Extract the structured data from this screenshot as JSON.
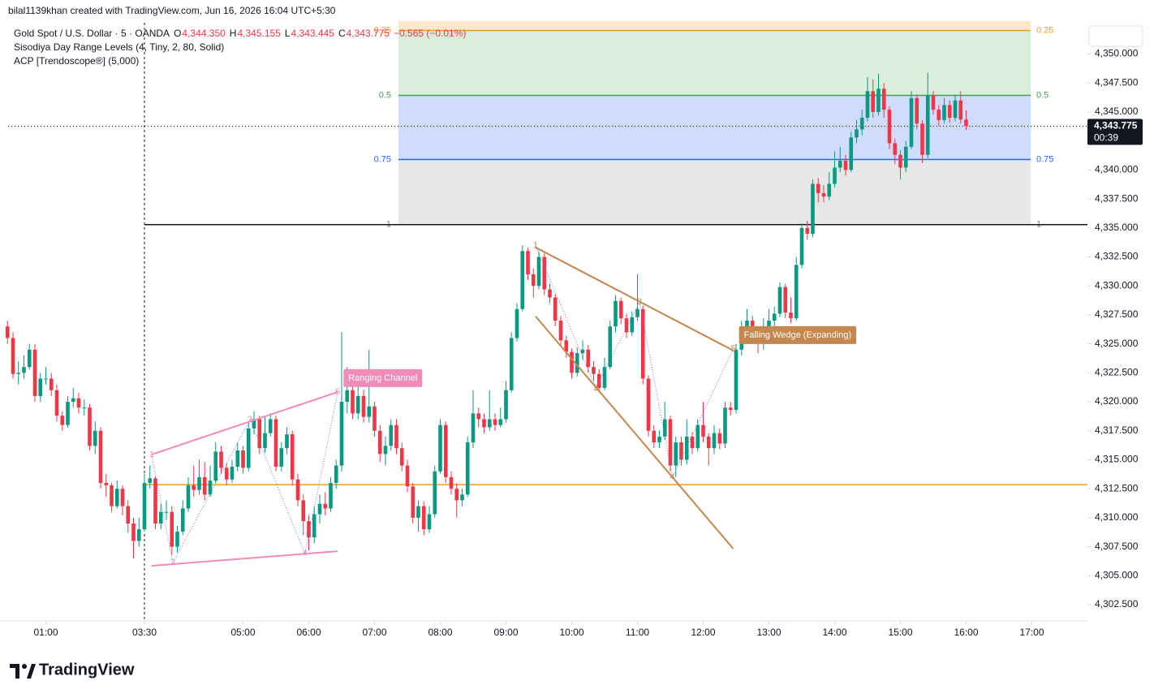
{
  "header": "bilal1139khan created with TradingView.com, Jun 16, 2026 16:04 UTC+5:30",
  "logo_text": "TradingView",
  "chart_data": {
    "type": "candlestick",
    "legend": {
      "symbol": "Gold Spot / U.S. Dollar · 5 · OANDA",
      "items": [
        {
          "prefix": "O",
          "text": "4,344.350"
        },
        {
          "prefix": "H",
          "text": "4,345.155"
        },
        {
          "prefix": "L",
          "text": "4,343.445"
        },
        {
          "prefix": "C",
          "text": "4,343.775"
        }
      ],
      "change": "−0.565 (−0.01%)",
      "indicators": [
        "Sisodiya Day Range Levels (4, Tiny, 2, 80, Solid)",
        "ACP [Trendoscope®] (5,000)"
      ]
    },
    "currency": "USD",
    "last_price_label": "4,343.775",
    "countdown": "00:39",
    "up_color": "#089981",
    "down_color": "#f23645",
    "open": [
      4326.5,
      4325.5,
      4322.4,
      4322.5,
      4323,
      4324.5,
      4320.5,
      4322,
      4322,
      4321,
      4318.8,
      4318,
      4320,
      4320.3,
      4319.5,
      4319.5,
      4316.2,
      4317.5,
      4313,
      4312.8,
      4311,
      4312.5,
      4311,
      4309.5,
      4308,
      4309,
      4313,
      4313.4,
      4309.5,
      4310.5,
      4310.5,
      4307.5,
      4308.8,
      4310.8,
      4312.8,
      4312.4,
      4313.5,
      4312,
      4313.2,
      4315.7,
      4314.3,
      4313.3,
      4314.4,
      4315.8,
      4314.3,
      4317.7,
      4318.5,
      4316,
      4317.3,
      4318.5,
      4314.4,
      4316,
      4317.2,
      4313.3,
      4311.5,
      4309.7,
      4308.3,
      4310.3,
      4311.2,
      4310.8,
      4313,
      4314.5,
      4320,
      4321,
      4319,
      4320.5,
      4318.7,
      4319.6,
      4317.5,
      4315.5,
      4316.2,
      4318,
      4316,
      4314.5,
      4312.7,
      4310,
      4311,
      4309,
      4310.3,
      4314,
      4318,
      4313.5,
      4312.5,
      4311.5,
      4312,
      4316.5,
      4319,
      4318.5,
      4317.8,
      4318.5,
      4318,
      4318.5,
      4321,
      4325.5,
      4328,
      4333,
      4331,
      4330,
      4332.5,
      4329.7,
      4329,
      4327,
      4325.3,
      4324.3,
      4322.5,
      4324.2,
      4324.5,
      4323,
      4322.4,
      4321.2,
      4323,
      4326.5,
      4328.7,
      4327.2,
      4326,
      4327.3,
      4328,
      4322,
      4317.5,
      4316.5,
      4317,
      4318.5,
      4314.5,
      4316.5,
      4315,
      4317,
      4316,
      4318,
      4317,
      4316,
      4317.3,
      4316.4,
      4319.5,
      4319.3,
      4324.5,
      4326.5,
      4327,
      4325.7,
      4325,
      4326.5,
      4327,
      4327.6,
      4329.9,
      4327.7,
      4327.2,
      4331.8,
      4335,
      4334.5,
      4338.8,
      4338,
      4337.7,
      4338.8,
      4340.2,
      4340.8,
      4340,
      4342.8,
      4343.5,
      4344.5,
      4346.8,
      4345,
      4347,
      4345.2,
      4342.3,
      4341.3,
      4340.2,
      4342,
      4346.2,
      4344,
      4341.3,
      4346.4,
      4345.2,
      4344.3,
      4345.6,
      4344.5,
      4346,
      4344.35
    ],
    "high": [
      4327,
      4326,
      4323.5,
      4324,
      4325,
      4325,
      4322.5,
      4323,
      4322.5,
      4321.5,
      4319.2,
      4320.5,
      4321.2,
      4320.8,
      4320.2,
      4319.8,
      4318.3,
      4317.8,
      4313.8,
      4313,
      4313.2,
      4312.8,
      4311.5,
      4310,
      4310,
      4313.8,
      4314.5,
      4313.6,
      4311.2,
      4311.5,
      4311,
      4309.3,
      4311.5,
      4313.5,
      4314.5,
      4315,
      4314.8,
      4314.5,
      4316.5,
      4316.2,
      4314.7,
      4315,
      4316.5,
      4316.2,
      4318.2,
      4319.2,
      4318.8,
      4318.7,
      4319,
      4318.8,
      4316.5,
      4317.8,
      4317.5,
      4313.8,
      4312,
      4310.2,
      4311,
      4312,
      4312.2,
      4313.5,
      4315,
      4326,
      4323,
      4321.5,
      4321.5,
      4321,
      4324.5,
      4320,
      4318,
      4317,
      4318.5,
      4318.5,
      4316.5,
      4315,
      4313,
      4311.5,
      4311.4,
      4311,
      4314.5,
      4318.5,
      4318.3,
      4314,
      4313,
      4312.5,
      4317,
      4321,
      4319.5,
      4319,
      4321,
      4319,
      4319.5,
      4321.8,
      4326,
      4328.5,
      4333.5,
      4333.3,
      4331.5,
      4333,
      4332.8,
      4330.2,
      4329.3,
      4327.4,
      4325.7,
      4324.6,
      4324.7,
      4325.3,
      4324.9,
      4323.5,
      4322.8,
      4323.8,
      4327,
      4329.2,
      4329,
      4327.6,
      4327.8,
      4331,
      4328.3,
      4322.3,
      4318,
      4317.5,
      4320,
      4318.8,
      4317,
      4317,
      4318.5,
      4317.4,
      4318.5,
      4320,
      4317.3,
      4318,
      4317.7,
      4320,
      4320,
      4325,
      4327,
      4328,
      4327.4,
      4326.2,
      4327.2,
      4328,
      4328.2,
      4330.3,
      4330.2,
      4329,
      4332.5,
      4335.4,
      4335.6,
      4339.2,
      4339.3,
      4338.7,
      4339.8,
      4341.6,
      4342,
      4341.3,
      4343.3,
      4344.3,
      4345.2,
      4348,
      4347.8,
      4348.3,
      4347.5,
      4345.5,
      4342.7,
      4341.7,
      4342.5,
      4346.8,
      4346.5,
      4344.3,
      4348.4,
      4346.8,
      4345.6,
      4346.2,
      4346,
      4346.5,
      4346.8,
      4345.155
    ],
    "low": [
      4325,
      4322,
      4321.5,
      4322,
      4322.8,
      4320,
      4320,
      4321.5,
      4320.5,
      4318.3,
      4317.5,
      4317.8,
      4319.5,
      4319,
      4318.8,
      4315.8,
      4315.5,
      4312.5,
      4311.8,
      4310.5,
      4310.8,
      4310.2,
      4308.7,
      4306.5,
      4307.5,
      4308.8,
      4312.5,
      4309,
      4309,
      4309.8,
      4306.8,
      4307,
      4308.5,
      4310.5,
      4311.8,
      4312,
      4311.5,
      4311.8,
      4313,
      4313.8,
      4312.8,
      4313,
      4314,
      4313.8,
      4314,
      4317.2,
      4315.5,
      4315.6,
      4317,
      4314,
      4314,
      4315.5,
      4312.8,
      4311,
      4308.5,
      4307.2,
      4307.8,
      4309.5,
      4310.2,
      4310.5,
      4312.5,
      4314,
      4319,
      4318.5,
      4318.5,
      4318.2,
      4318.2,
      4317,
      4314.8,
      4314.5,
      4315.8,
      4315.5,
      4314,
      4312.2,
      4309.5,
      4308.8,
      4308.5,
      4308.7,
      4310,
      4313.8,
      4313,
      4312,
      4310,
      4311,
      4311.8,
      4316,
      4317.8,
      4317.3,
      4317.5,
      4317.5,
      4317.8,
      4318.2,
      4320.8,
      4325.2,
      4327.8,
      4330.5,
      4329,
      4329.7,
      4329.2,
      4328.5,
      4326.5,
      4324.8,
      4323.8,
      4322,
      4322.2,
      4323.6,
      4322.5,
      4321.8,
      4320.8,
      4321,
      4322.8,
      4326,
      4326.7,
      4325.5,
      4325.7,
      4327,
      4321.5,
      4317,
      4316,
      4316,
      4316.7,
      4314,
      4313.5,
      4314.5,
      4314.6,
      4315.5,
      4315.7,
      4316.5,
      4314.5,
      4315.5,
      4315.9,
      4316,
      4318.8,
      4319,
      4324,
      4325.8,
      4325,
      4324.2,
      4324.5,
      4325.8,
      4326.3,
      4327.3,
      4327.2,
      4326.8,
      4327,
      4331.5,
      4334,
      4334.2,
      4337.2,
      4337.2,
      4337.4,
      4338.5,
      4339.8,
      4339.5,
      4339.8,
      4342.3,
      4343,
      4344.2,
      4344.5,
      4344.7,
      4344.5,
      4341.8,
      4340.5,
      4339.2,
      4339.8,
      4341.8,
      4343.5,
      4340.6,
      4341,
      4344.8,
      4343.8,
      4344,
      4344.1,
      4344.2,
      4344,
      4343.445
    ],
    "close": [
      4325.5,
      4322.4,
      4322.5,
      4323,
      4324.5,
      4320.5,
      4322,
      4322,
      4321,
      4318.8,
      4318,
      4320,
      4320.3,
      4319.5,
      4319.5,
      4316.2,
      4317.5,
      4313,
      4312.8,
      4311,
      4312.5,
      4311,
      4309.5,
      4308,
      4309,
      4313,
      4313.4,
      4309.5,
      4310.5,
      4310.5,
      4307.5,
      4308.8,
      4310.8,
      4312.8,
      4312.4,
      4313.5,
      4312,
      4313.2,
      4315.7,
      4314.3,
      4313.3,
      4314.4,
      4315.8,
      4314.3,
      4317.7,
      4318.5,
      4316,
      4317.3,
      4318.5,
      4314.4,
      4316,
      4317.2,
      4313.3,
      4311.5,
      4309.7,
      4308.3,
      4310.3,
      4311.2,
      4310.8,
      4313,
      4314.5,
      4320,
      4321,
      4319,
      4320.5,
      4318.7,
      4319.6,
      4317.5,
      4315.5,
      4316.2,
      4318,
      4316,
      4314.5,
      4312.7,
      4310,
      4311,
      4309,
      4310.3,
      4314,
      4318,
      4313.5,
      4312.5,
      4311.5,
      4312,
      4316.5,
      4319,
      4318.5,
      4317.8,
      4318.5,
      4318,
      4318.5,
      4321,
      4325.5,
      4328,
      4333,
      4331,
      4330,
      4332.5,
      4329.7,
      4329,
      4327,
      4325.3,
      4324.3,
      4322.5,
      4324.2,
      4324.5,
      4323,
      4322.4,
      4321.2,
      4323,
      4326.5,
      4328.7,
      4327.2,
      4326,
      4327.3,
      4328,
      4322,
      4317.5,
      4316.5,
      4317,
      4318.5,
      4314.5,
      4316.5,
      4315,
      4317,
      4316,
      4318,
      4317,
      4316,
      4317.3,
      4316.4,
      4319.5,
      4319.3,
      4324.5,
      4326.5,
      4327,
      4325.7,
      4325,
      4326.5,
      4327,
      4327.6,
      4329.9,
      4327.7,
      4327.2,
      4331.8,
      4335,
      4334.5,
      4338.8,
      4338,
      4337.7,
      4338.8,
      4340.2,
      4340.8,
      4340,
      4342.8,
      4343.5,
      4344.5,
      4346.8,
      4345,
      4347,
      4345.2,
      4342.3,
      4341.3,
      4340.2,
      4342,
      4346.2,
      4344,
      4341.3,
      4346.4,
      4345.2,
      4344.3,
      4345.6,
      4344.5,
      4346,
      4344.35,
      4343.775
    ],
    "ylim": [
      4301.1,
      4352.7
    ],
    "yticks": [
      {
        "value": 4302.5,
        "label": "4,302.500"
      },
      {
        "value": 4305,
        "label": "4,305.000"
      },
      {
        "value": 4307.5,
        "label": "4,307.500"
      },
      {
        "value": 4310,
        "label": "4,310.000"
      },
      {
        "value": 4312.5,
        "label": "4,312.500"
      },
      {
        "value": 4315,
        "label": "4,315.000"
      },
      {
        "value": 4317.5,
        "label": "4,317.500"
      },
      {
        "value": 4320,
        "label": "4,320.000"
      },
      {
        "value": 4322.5,
        "label": "4,322.500"
      },
      {
        "value": 4325,
        "label": "4,325.000"
      },
      {
        "value": 4327.5,
        "label": "4,327.500"
      },
      {
        "value": 4330,
        "label": "4,330.000"
      },
      {
        "value": 4332.5,
        "label": "4,332.500"
      },
      {
        "value": 4335,
        "label": "4,335.000"
      },
      {
        "value": 4337.5,
        "label": "4,337.500"
      },
      {
        "value": 4340,
        "label": "4,340.000"
      },
      {
        "value": 4342.5,
        "label": "4,342.500"
      },
      {
        "value": 4345,
        "label": "4,345.000"
      },
      {
        "value": 4347.5,
        "label": "4,347.500"
      },
      {
        "value": 4350,
        "label": "4,350.000"
      }
    ],
    "xticks": [
      {
        "value": 7,
        "label": "01:00"
      },
      {
        "value": 25,
        "label": "03:30"
      },
      {
        "value": 43,
        "label": "05:00"
      },
      {
        "value": 55,
        "label": "06:00"
      },
      {
        "value": 67,
        "label": "07:00"
      },
      {
        "value": 79,
        "label": "08:00"
      },
      {
        "value": 91,
        "label": "09:00"
      },
      {
        "value": 103,
        "label": "10:00"
      },
      {
        "value": 115,
        "label": "11:00"
      },
      {
        "value": 127,
        "label": "12:00"
      },
      {
        "value": 139,
        "label": "13:00"
      },
      {
        "value": 151,
        "label": "14:00"
      },
      {
        "value": 163,
        "label": "15:00"
      },
      {
        "value": 175,
        "label": "16:00"
      },
      {
        "value": 187,
        "label": "17:00"
      }
    ],
    "fib_levels": [
      {
        "label": "0.25",
        "value": 4352.03,
        "color": "#f59b22",
        "fill": "#fde8cc"
      },
      {
        "label": "0.5",
        "value": 4346.43,
        "color": "#43a047",
        "fill": "#d9efdb"
      },
      {
        "label": "0.75",
        "value": 4340.9,
        "color": "#2962ff",
        "fill": "#d0dcfd"
      },
      {
        "label": "1",
        "value": 4335.28,
        "color": "#787b86",
        "fill": "#e7e7e8"
      }
    ],
    "day_levels": [
      {
        "value": 4335.28,
        "color": "#131722"
      },
      {
        "value": 4312.85,
        "color": "#f59b22"
      }
    ],
    "patterns": [
      {
        "name": "Ranging Channel",
        "color": "#f08cba",
        "points": [
          {
            "label": "1",
            "x": 26.3,
            "y": 4315.45
          },
          {
            "label": "2",
            "x": 30.2,
            "y": 4306.13
          },
          {
            "label": "3",
            "x": 44.3,
            "y": 4318.47
          },
          {
            "label": "4",
            "x": 54.3,
            "y": 4306.9
          },
          {
            "label": "5",
            "x": 60.3,
            "y": 4320.85
          }
        ],
        "lines": [
          {
            "x": [
              26.3,
              60.3
            ],
            "y": [
              4315.45,
              4320.85
            ]
          },
          {
            "x": [
              26.3,
              60.3
            ],
            "y": [
              4305.85,
              4307.11
            ]
          }
        ]
      },
      {
        "name": "Falling Wedge (Expanding)",
        "color": "#c4874f",
        "points": [
          {
            "label": "1",
            "x": 96.4,
            "y": 4333.46
          },
          {
            "label": "2",
            "x": 107.4,
            "y": 4321.2
          },
          {
            "label": "3",
            "x": 115.4,
            "y": 4328.6
          },
          {
            "label": "4",
            "x": 121.4,
            "y": 4313.5
          },
          {
            "label": "5",
            "x": 132.5,
            "y": 4324.56
          }
        ],
        "lines": [
          {
            "x": [
              96.4,
              132.5
            ],
            "y": [
              4333.32,
              4324.42
            ]
          },
          {
            "x": [
              96.4,
              132.5
            ],
            "y": [
              4327.37,
              4307.32
            ]
          }
        ]
      }
    ]
  }
}
